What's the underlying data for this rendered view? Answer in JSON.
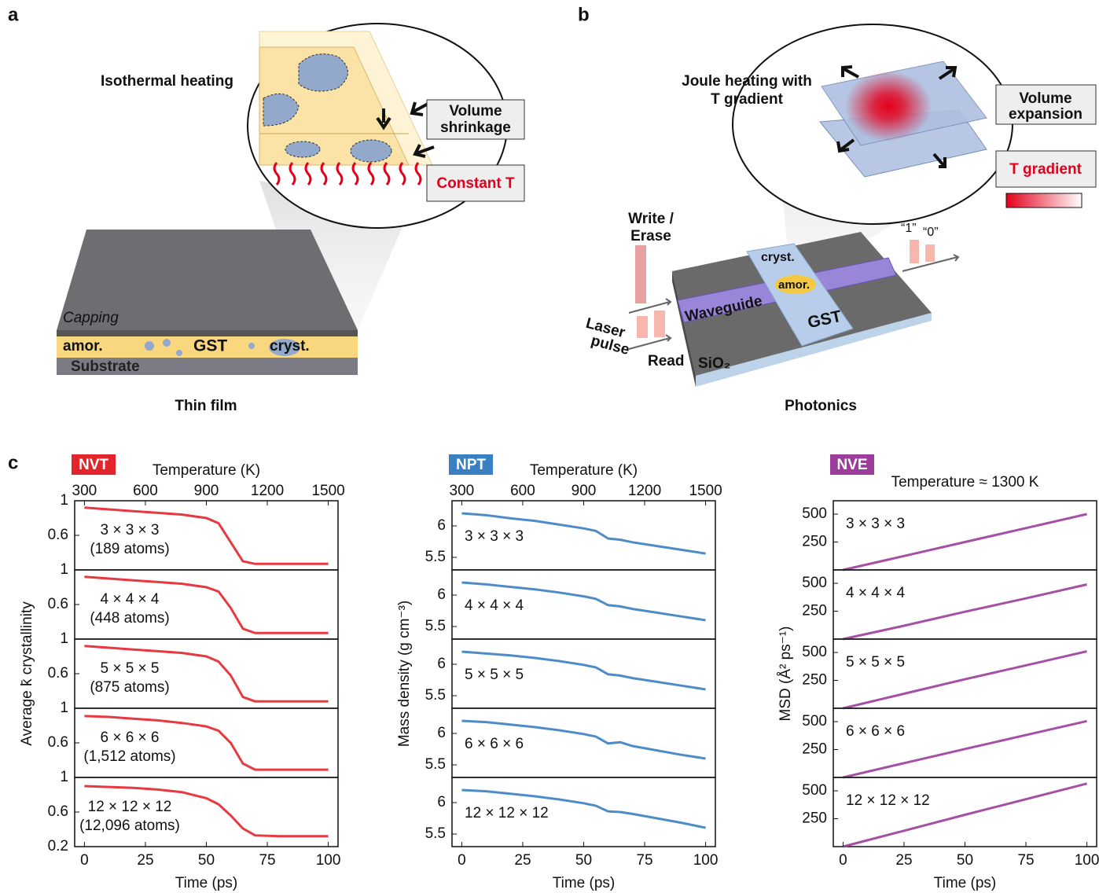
{
  "panel_labels": [
    "a",
    "b",
    "c"
  ],
  "thin_film": {
    "inset_title": "Isothermal heating",
    "shrink": [
      "Volume",
      "shrinkage"
    ],
    "constant_t": "Constant T",
    "capping": "Capping",
    "amor": "amor.",
    "gst": "GST",
    "cryst": "cryst.",
    "substrate": "Substrate",
    "caption": "Thin film"
  },
  "photonics": {
    "inset_title": [
      "Joule heating with",
      "T gradient"
    ],
    "expansion": [
      "Volume",
      "expansion"
    ],
    "t_gradient": "T gradient",
    "write": [
      "Write /",
      "Erase"
    ],
    "laser": [
      "Laser",
      "pulse"
    ],
    "read": "Read",
    "cryst": "cryst.",
    "amor": "amor.",
    "waveguide": "Waveguide",
    "gst": "GST",
    "substrate": "SiO₂",
    "one": "“1”",
    "zero": "“0”",
    "caption": "Photonics"
  },
  "chart_data": [
    {
      "type": "line",
      "ensemble": "NVT",
      "color": "#e3242b",
      "top_label": "Temperature (K)",
      "top_lim": [
        252,
        1548
      ],
      "top_ticks": [
        300,
        600,
        900,
        1200,
        1500
      ],
      "ylabel": "Average k̄ crystallinity",
      "xlabel": "Time (ps)",
      "x": [
        0,
        10,
        20,
        30,
        40,
        50,
        55,
        60,
        65,
        70,
        80,
        90,
        100
      ],
      "xlim": [
        -4,
        104
      ],
      "xticks": [
        0,
        25,
        50,
        75,
        100
      ],
      "panels": [
        {
          "label": "3 × 3 × 3",
          "atoms": "(189 atoms)",
          "values": [
            0.92,
            0.9,
            0.88,
            0.86,
            0.84,
            0.8,
            0.74,
            0.52,
            0.3,
            0.27,
            0.27,
            0.27,
            0.27
          ],
          "ylim": [
            0.2,
            1
          ],
          "yticks": [
            0.6,
            1
          ]
        },
        {
          "label": "4 × 4 × 4",
          "atoms": "(448 atoms)",
          "values": [
            0.92,
            0.9,
            0.88,
            0.86,
            0.84,
            0.8,
            0.75,
            0.56,
            0.32,
            0.27,
            0.27,
            0.27,
            0.27
          ],
          "ylim": [
            0.2,
            1
          ],
          "yticks": [
            0.6,
            1
          ]
        },
        {
          "label": "5 × 5 × 5",
          "atoms": "(875 atoms)",
          "values": [
            0.92,
            0.9,
            0.88,
            0.86,
            0.84,
            0.8,
            0.74,
            0.58,
            0.33,
            0.28,
            0.28,
            0.28,
            0.28
          ],
          "ylim": [
            0.2,
            1
          ],
          "yticks": [
            0.6,
            1
          ]
        },
        {
          "label": "6 × 6 × 6",
          "atoms": "(1,512 atoms)",
          "values": [
            0.91,
            0.9,
            0.88,
            0.86,
            0.83,
            0.79,
            0.74,
            0.6,
            0.36,
            0.29,
            0.29,
            0.29,
            0.29
          ],
          "ylim": [
            0.2,
            1
          ],
          "yticks": [
            0.6,
            1
          ]
        },
        {
          "label": "12 × 12 × 12",
          "atoms": "(12,096 atoms)",
          "values": [
            0.9,
            0.89,
            0.88,
            0.86,
            0.83,
            0.76,
            0.69,
            0.56,
            0.41,
            0.33,
            0.32,
            0.32,
            0.32
          ],
          "ylim": [
            0.2,
            1
          ],
          "yticks": [
            0.2,
            0.6,
            1
          ]
        }
      ]
    },
    {
      "type": "line",
      "ensemble": "NPT",
      "color": "#3a7fc1",
      "top_label": "Temperature (K)",
      "top_lim": [
        252,
        1548
      ],
      "top_ticks": [
        300,
        600,
        900,
        1200,
        1500
      ],
      "ylabel": "Mass density (g cm⁻³)",
      "xlabel": "Time (ps)",
      "x": [
        0,
        10,
        20,
        30,
        40,
        50,
        55,
        60,
        65,
        70,
        80,
        90,
        100
      ],
      "xlim": [
        -4,
        104
      ],
      "xticks": [
        0,
        25,
        50,
        75,
        100
      ],
      "panels": [
        {
          "label": "3 × 3 × 3",
          "values": [
            6.2,
            6.17,
            6.12,
            6.08,
            6.02,
            5.96,
            5.92,
            5.8,
            5.78,
            5.74,
            5.68,
            5.62,
            5.56
          ],
          "ylim": [
            5.3,
            6.4
          ],
          "yticks": [
            5.5,
            6
          ]
        },
        {
          "label": "4 × 4 × 4",
          "values": [
            6.2,
            6.17,
            6.13,
            6.09,
            6.04,
            5.98,
            5.94,
            5.84,
            5.82,
            5.78,
            5.72,
            5.66,
            5.6
          ],
          "ylim": [
            5.3,
            6.4
          ],
          "yticks": [
            5.5,
            6
          ]
        },
        {
          "label": "5 × 5 × 5",
          "values": [
            6.2,
            6.17,
            6.14,
            6.1,
            6.05,
            5.99,
            5.95,
            5.84,
            5.82,
            5.78,
            5.72,
            5.66,
            5.6
          ],
          "ylim": [
            5.3,
            6.4
          ],
          "yticks": [
            5.5,
            6
          ]
        },
        {
          "label": "6 × 6 × 6",
          "values": [
            6.2,
            6.18,
            6.14,
            6.1,
            6.05,
            5.99,
            5.95,
            5.84,
            5.86,
            5.8,
            5.73,
            5.66,
            5.6
          ],
          "ylim": [
            5.3,
            6.4
          ],
          "yticks": [
            5.5,
            6
          ]
        },
        {
          "label": "12 × 12 × 12",
          "values": [
            6.2,
            6.18,
            6.14,
            6.1,
            6.05,
            5.99,
            5.95,
            5.86,
            5.85,
            5.82,
            5.75,
            5.68,
            5.6
          ],
          "ylim": [
            5.3,
            6.4
          ],
          "yticks": [
            5.5,
            6
          ]
        }
      ]
    },
    {
      "type": "line",
      "ensemble": "NVE",
      "color": "#9b3d9b",
      "top_label": "Temperature ≈ 1300 K",
      "ylabel": "MSD (Å² ps⁻¹)",
      "xlabel": "Time (ps)",
      "x": [
        0,
        25,
        50,
        75,
        100
      ],
      "xlim": [
        -4,
        104
      ],
      "xticks": [
        0,
        25,
        50,
        75,
        100
      ],
      "panels": [
        {
          "label": "3 × 3 × 3",
          "values": [
            0,
            125,
            250,
            375,
            500
          ],
          "ylim": [
            0,
            620
          ],
          "yticks": [
            250,
            500
          ]
        },
        {
          "label": "4 × 4 × 4",
          "values": [
            0,
            120,
            245,
            365,
            490
          ],
          "ylim": [
            0,
            620
          ],
          "yticks": [
            250,
            500
          ]
        },
        {
          "label": "5 × 5 × 5",
          "values": [
            0,
            130,
            260,
            385,
            510
          ],
          "ylim": [
            0,
            620
          ],
          "yticks": [
            250,
            500
          ]
        },
        {
          "label": "6 × 6 × 6",
          "values": [
            0,
            128,
            255,
            380,
            505
          ],
          "ylim": [
            0,
            620
          ],
          "yticks": [
            250,
            500
          ]
        },
        {
          "label": "12 × 12 × 12",
          "values": [
            0,
            142,
            285,
            425,
            565
          ],
          "ylim": [
            0,
            620
          ],
          "yticks": [
            250,
            500
          ]
        }
      ]
    }
  ]
}
